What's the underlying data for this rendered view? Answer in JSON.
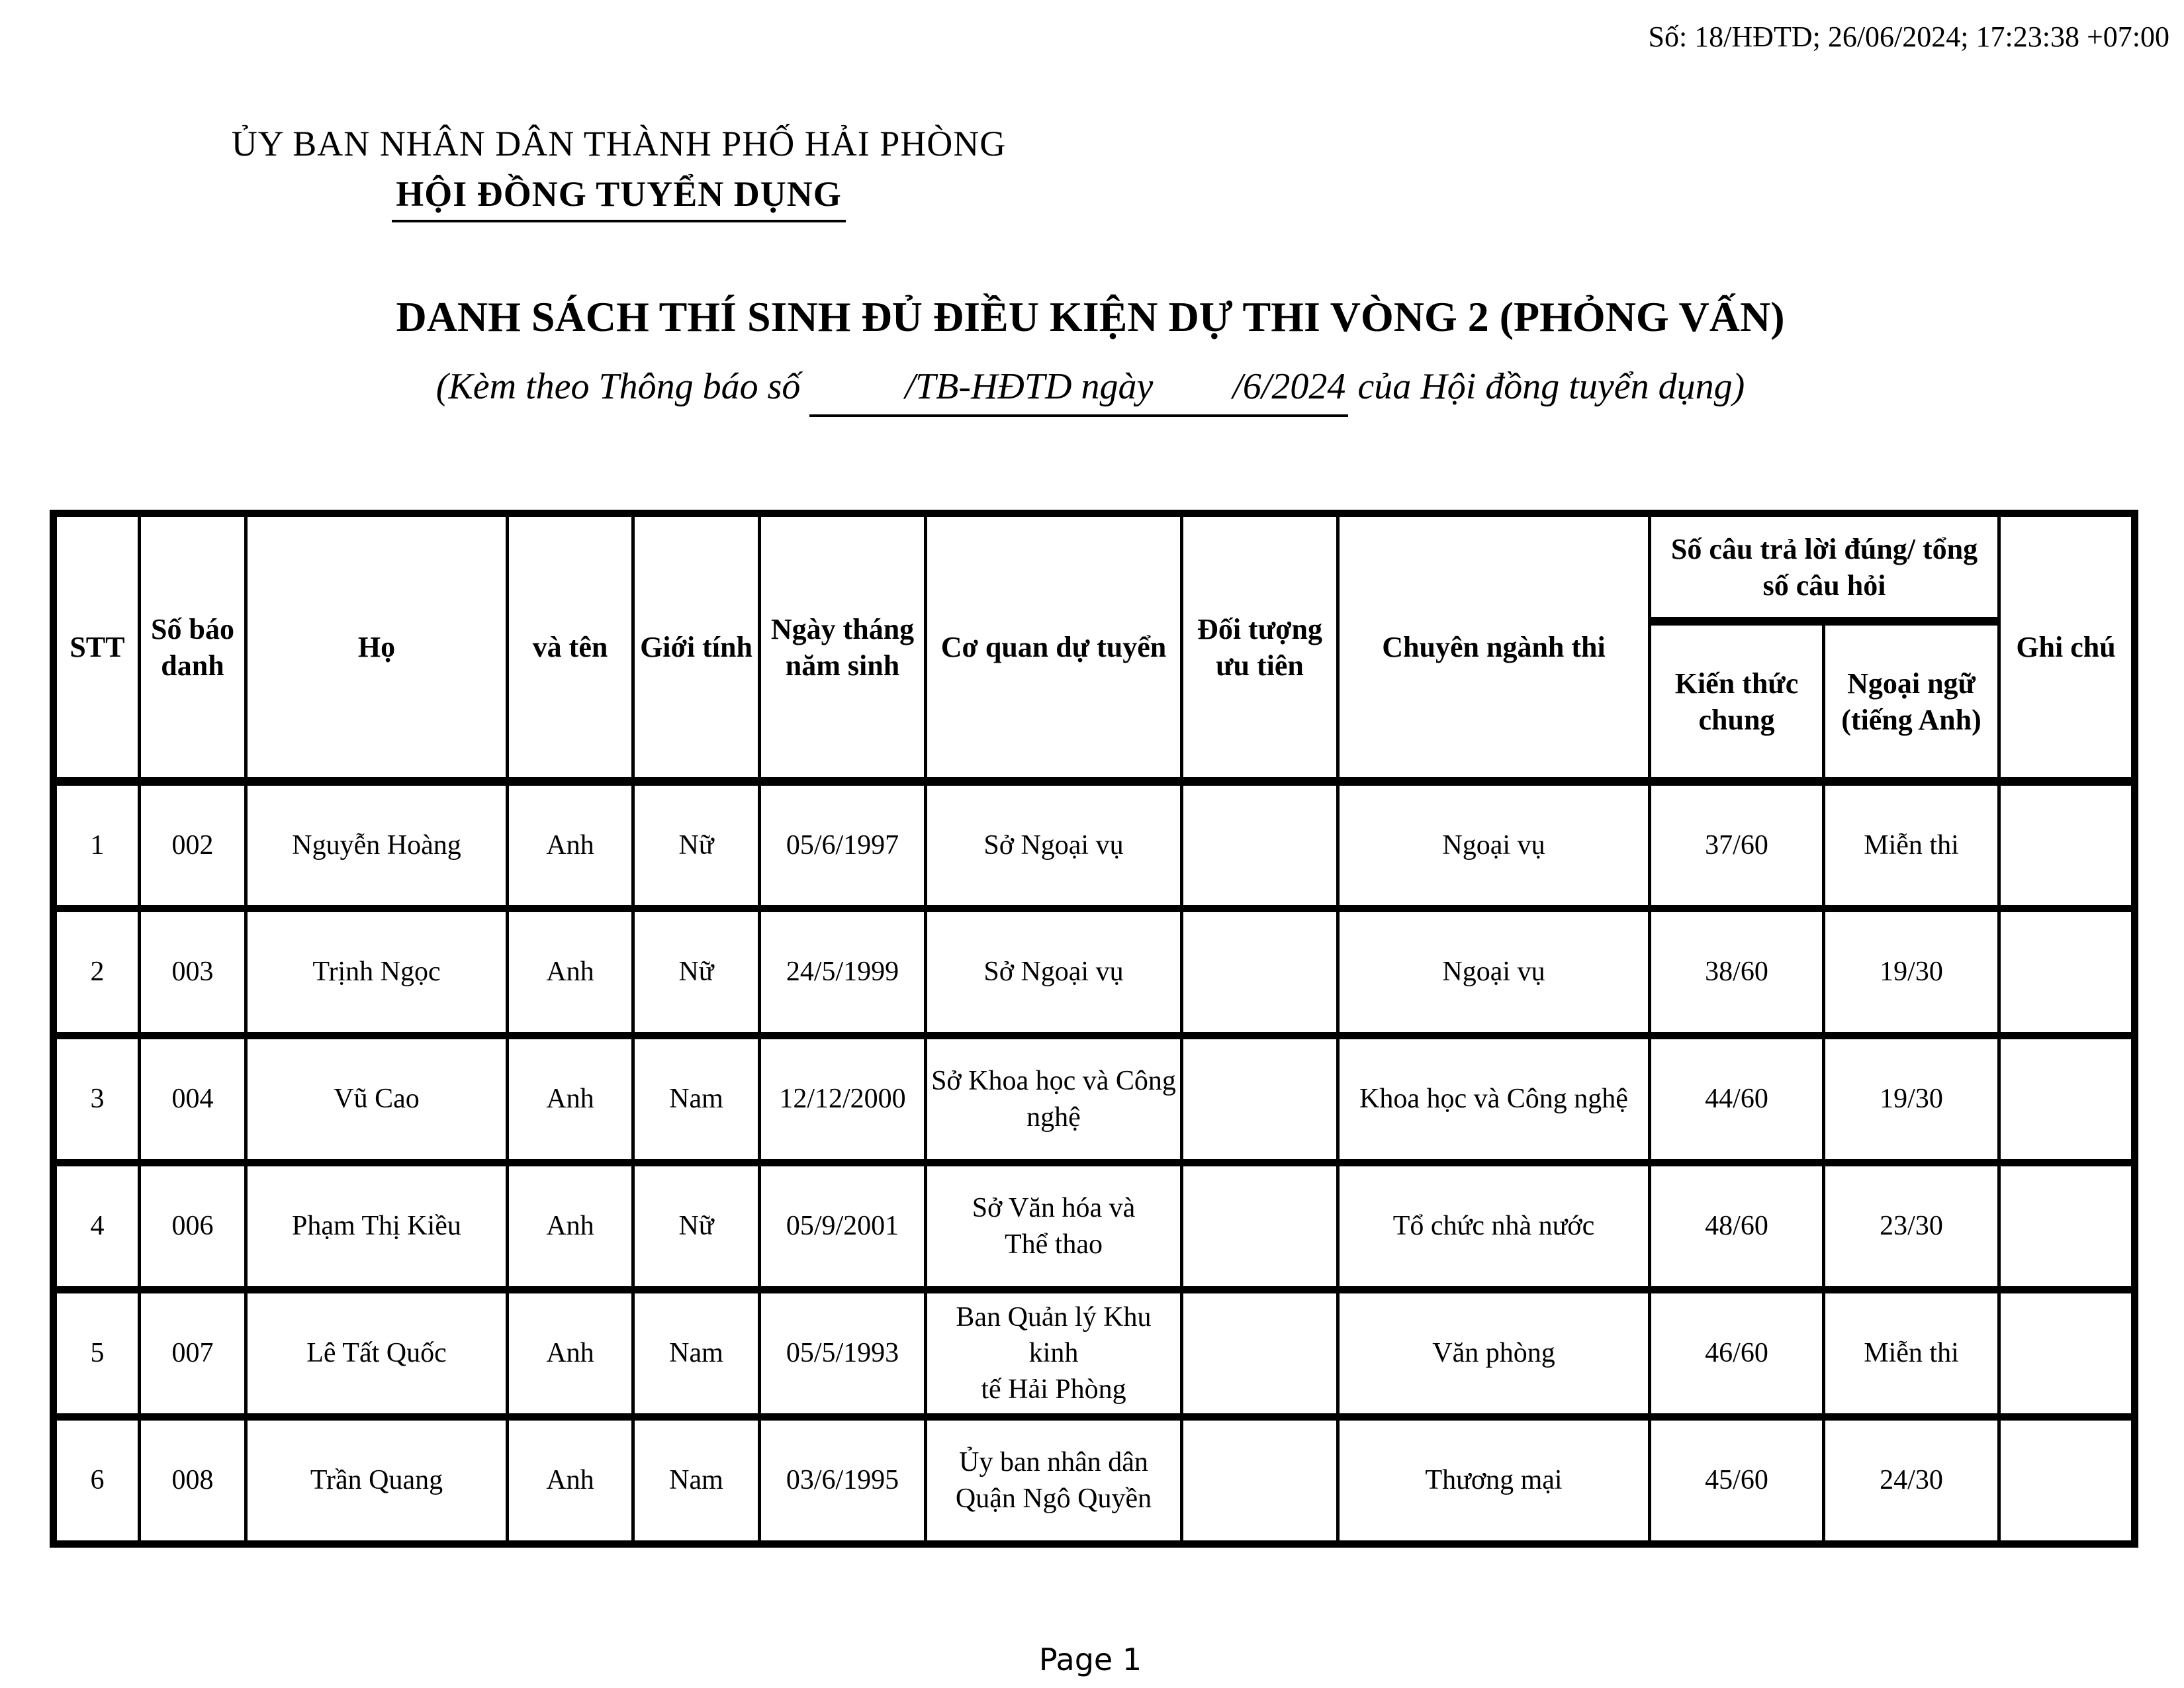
{
  "meta": {
    "stamp": "Số: 18/HĐTD; 26/06/2024; 17:23:38 +07:00"
  },
  "header": {
    "org_line1": "ỦY BAN NHÂN DÂN THÀNH PHỐ HẢI PHÒNG",
    "org_line2": "HỘI ĐỒNG TUYỂN DỤNG",
    "title": "DANH SÁCH THÍ SINH ĐỦ ĐIỀU KIỆN DỰ THI VÒNG 2 (PHỎNG VẤN)",
    "subtitle_prefix": "(Kèm theo Thông báo số",
    "subtitle_mid": "/TB-HĐTD ngày",
    "subtitle_num": "/6/2024",
    "subtitle_suffix": "của Hội đồng tuyển dụng)"
  },
  "table": {
    "columns": [
      "STT",
      "Số báo\ndanh",
      "Họ",
      "và tên",
      "Giới tính",
      "Ngày tháng\nnăm sinh",
      "Cơ quan dự tuyển",
      "Đối tượng\nưu tiên",
      "Chuyên ngành thi",
      "Ghi chú"
    ],
    "merged_header": "Số câu trả lời đúng/ tổng\nsố câu hỏi",
    "sub_headers": [
      "Kiến thức\nchung",
      "Ngoại ngữ\n(tiếng Anh)"
    ],
    "rows": [
      [
        "1",
        "002",
        "Nguyễn Hoàng",
        "Anh",
        "Nữ",
        "05/6/1997",
        "Sở Ngoại vụ",
        "",
        "Ngoại vụ",
        "37/60",
        "Miễn thi",
        ""
      ],
      [
        "2",
        "003",
        "Trịnh Ngọc",
        "Anh",
        "Nữ",
        "24/5/1999",
        "Sở Ngoại vụ",
        "",
        "Ngoại vụ",
        "38/60",
        "19/30",
        ""
      ],
      [
        "3",
        "004",
        "Vũ Cao",
        "Anh",
        "Nam",
        "12/12/2000",
        "Sở Khoa học và Công\nnghệ",
        "",
        "Khoa học và Công nghệ",
        "44/60",
        "19/30",
        ""
      ],
      [
        "4",
        "006",
        "Phạm Thị Kiều",
        "Anh",
        "Nữ",
        "05/9/2001",
        "Sở Văn hóa và\nThể thao",
        "",
        "Tổ chức nhà nước",
        "48/60",
        "23/30",
        ""
      ],
      [
        "5",
        "007",
        "Lê Tất Quốc",
        "Anh",
        "Nam",
        "05/5/1993",
        "Ban Quản lý Khu kinh\ntế Hải Phòng",
        "",
        "Văn phòng",
        "46/60",
        "Miễn thi",
        ""
      ],
      [
        "6",
        "008",
        "Trần Quang",
        "Anh",
        "Nam",
        "03/6/1995",
        "Ủy ban nhân dân\nQuận Ngô Quyền",
        "",
        "Thương mại",
        "45/60",
        "24/30",
        ""
      ]
    ]
  },
  "footer": {
    "page_label": "Page 1"
  }
}
